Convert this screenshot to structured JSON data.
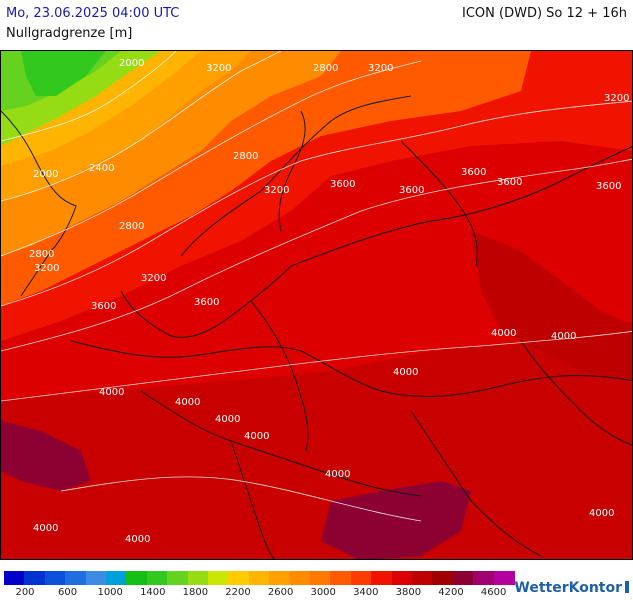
{
  "header": {
    "run_date": "Mo, 23.06.2025 04:00 UTC",
    "model_title": "ICON (DWD) So 12 + 16h",
    "parameter": "Nullgradgrenze [m]"
  },
  "map": {
    "contour_labels": [
      "2000",
      "3200",
      "2800",
      "3200",
      "3200",
      "2400",
      "2800",
      "2000",
      "3600",
      "3200",
      "3600",
      "3600",
      "3600",
      "3600",
      "2800",
      "2800",
      "3200",
      "3200",
      "3600",
      "3600",
      "4000",
      "4000",
      "4000",
      "4000",
      "4000",
      "4000",
      "4000",
      "4000",
      "4000",
      "4000",
      "4000"
    ]
  },
  "legend": {
    "colors": [
      "#0000c8",
      "#0032d2",
      "#0a50d8",
      "#1e6ee0",
      "#3c8ce6",
      "#00a0dc",
      "#14be14",
      "#32c81e",
      "#64d21e",
      "#96dc14",
      "#c8e600",
      "#ffcc00",
      "#ffb400",
      "#ffa000",
      "#ff8c00",
      "#ff7800",
      "#ff5a00",
      "#ff3c00",
      "#f01400",
      "#dc0000",
      "#be0000",
      "#a00000",
      "#8c0032",
      "#a0006e",
      "#b4009e"
    ],
    "tick_labels": [
      "200",
      "600",
      "1000",
      "1400",
      "1800",
      "2200",
      "2600",
      "3000",
      "3400",
      "3800",
      "4200",
      "4600"
    ]
  },
  "brand": {
    "name": "WetterKontor"
  }
}
